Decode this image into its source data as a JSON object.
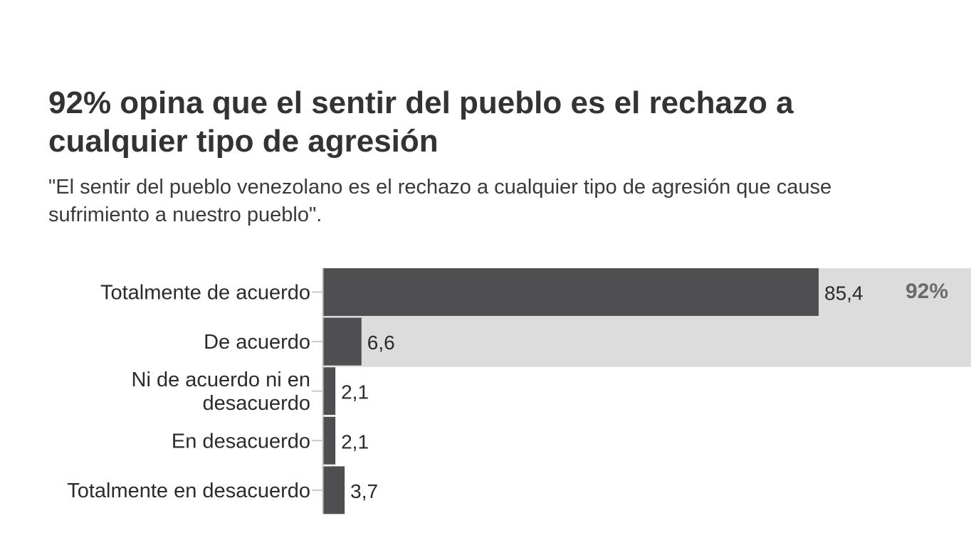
{
  "chart_data": {
    "type": "bar",
    "orientation": "horizontal",
    "title": "92% opina que el sentir del pueblo es el rechazo a cualquier tipo de agresión",
    "subtitle": "\"El sentir del pueblo venezolano es el rechazo a cualquier tipo de agresión que cause sufrimiento a nuestro pueblo\".",
    "categories": [
      [
        "Totalmente de acuerdo"
      ],
      [
        "De acuerdo"
      ],
      [
        "Ni de acuerdo ni en",
        "desacuerdo"
      ],
      [
        "En desacuerdo"
      ],
      [
        "Totalmente en desacuerdo"
      ]
    ],
    "values": [
      85.4,
      6.6,
      2.1,
      2.1,
      3.7
    ],
    "value_labels": [
      "85,4",
      "6,6",
      "2,1",
      "2,1",
      "3,7"
    ],
    "highlight": {
      "rows": [
        0,
        1
      ],
      "label": "92%"
    },
    "xlim": [
      0,
      100
    ],
    "grid": false,
    "colors": {
      "bar": "#4f4f52",
      "highlight_band": "#dcdcdc",
      "axis": "#c8c8c8",
      "highlight_text": "#6a6a6a"
    }
  }
}
